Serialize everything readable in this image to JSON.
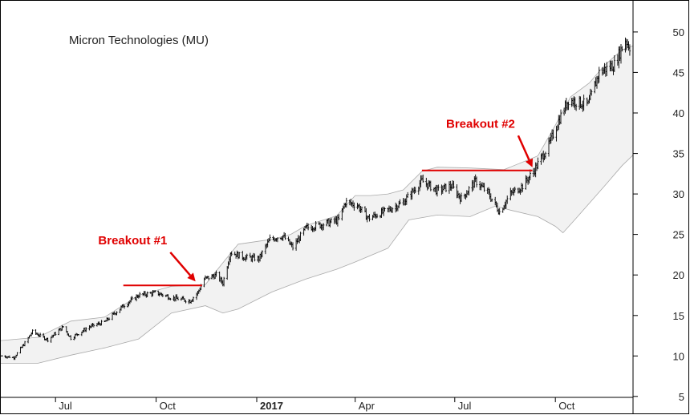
{
  "chart_data": {
    "type": "ohlc",
    "title": "Micron Technologies (MU)",
    "xlabel": "",
    "ylabel": "",
    "ylim": [
      5,
      52
    ],
    "y_ticks": [
      5,
      10,
      15,
      20,
      25,
      30,
      35,
      40,
      45,
      50
    ],
    "grid": false,
    "x_range": [
      "2016-05-12",
      "2017-12-11"
    ],
    "x_ticks": [
      {
        "label": "Jul",
        "date": "2016-07-01",
        "bold": false
      },
      {
        "label": "Oct",
        "date": "2016-10-01",
        "bold": false
      },
      {
        "label": "2017",
        "date": "2017-01-01",
        "bold": true
      },
      {
        "label": "Apr",
        "date": "2017-04-01",
        "bold": false
      },
      {
        "label": "Jul",
        "date": "2017-07-01",
        "bold": false
      },
      {
        "label": "Oct",
        "date": "2017-10-01",
        "bold": false
      }
    ],
    "price_anchors": [
      [
        "2016-05-13",
        10.0
      ],
      [
        "2016-05-24",
        9.8
      ],
      [
        "2016-06-03",
        11.6
      ],
      [
        "2016-06-10",
        13.0
      ],
      [
        "2016-06-24",
        12.0
      ],
      [
        "2016-07-08",
        13.6
      ],
      [
        "2016-07-15",
        12.2
      ],
      [
        "2016-08-01",
        13.6
      ],
      [
        "2016-08-15",
        14.2
      ],
      [
        "2016-09-01",
        16.2
      ],
      [
        "2016-09-15",
        17.5
      ],
      [
        "2016-10-01",
        17.8
      ],
      [
        "2016-10-15",
        17.2
      ],
      [
        "2016-11-01",
        16.8
      ],
      [
        "2016-11-08",
        17.8
      ],
      [
        "2016-11-14",
        19.5
      ],
      [
        "2016-11-25",
        20.0
      ],
      [
        "2016-12-01",
        19.0
      ],
      [
        "2016-12-08",
        22.8
      ],
      [
        "2016-12-20",
        22.2
      ],
      [
        "2017-01-03",
        22.0
      ],
      [
        "2017-01-13",
        24.4
      ],
      [
        "2017-01-25",
        24.8
      ],
      [
        "2017-02-03",
        23.4
      ],
      [
        "2017-02-15",
        25.8
      ],
      [
        "2017-03-01",
        26.2
      ],
      [
        "2017-03-17",
        26.8
      ],
      [
        "2017-03-23",
        29.0
      ],
      [
        "2017-04-03",
        28.6
      ],
      [
        "2017-04-13",
        27.0
      ],
      [
        "2017-05-01",
        28.0
      ],
      [
        "2017-05-15",
        29.0
      ],
      [
        "2017-06-01",
        31.6
      ],
      [
        "2017-06-15",
        30.4
      ],
      [
        "2017-06-28",
        31.0
      ],
      [
        "2017-07-07",
        29.4
      ],
      [
        "2017-07-20",
        31.6
      ],
      [
        "2017-07-31",
        30.2
      ],
      [
        "2017-08-11",
        27.8
      ],
      [
        "2017-08-21",
        30.0
      ],
      [
        "2017-09-01",
        31.0
      ],
      [
        "2017-09-11",
        32.8
      ],
      [
        "2017-09-25",
        36.0
      ],
      [
        "2017-10-05",
        39.4
      ],
      [
        "2017-10-13",
        41.6
      ],
      [
        "2017-10-31",
        41.0
      ],
      [
        "2017-11-10",
        45.0
      ],
      [
        "2017-11-24",
        46.0
      ],
      [
        "2017-12-04",
        49.0
      ],
      [
        "2017-12-08",
        48.2
      ]
    ],
    "band_upper": [
      [
        "2016-05-12",
        11.9
      ],
      [
        "2016-06-15",
        12.3
      ],
      [
        "2016-07-15",
        14.3
      ],
      [
        "2016-08-15",
        14.8
      ],
      [
        "2016-09-15",
        17.5
      ],
      [
        "2016-10-15",
        18.6
      ],
      [
        "2016-11-15",
        18.8
      ],
      [
        "2016-12-01",
        21.5
      ],
      [
        "2016-12-15",
        23.8
      ],
      [
        "2017-01-15",
        24.4
      ],
      [
        "2017-02-01",
        25.0
      ],
      [
        "2017-02-15",
        26.1
      ],
      [
        "2017-03-15",
        27.3
      ],
      [
        "2017-04-01",
        29.8
      ],
      [
        "2017-04-15",
        29.8
      ],
      [
        "2017-05-01",
        30.0
      ],
      [
        "2017-05-15",
        30.5
      ],
      [
        "2017-06-01",
        32.8
      ],
      [
        "2017-06-15",
        33.3
      ],
      [
        "2017-07-15",
        33.2
      ],
      [
        "2017-08-15",
        33.0
      ],
      [
        "2017-09-15",
        34.7
      ],
      [
        "2017-10-01",
        38.5
      ],
      [
        "2017-10-15",
        42.0
      ],
      [
        "2017-11-01",
        43.7
      ],
      [
        "2017-11-15",
        45.9
      ],
      [
        "2017-12-01",
        47.8
      ],
      [
        "2017-12-11",
        48.3
      ]
    ],
    "band_lower": [
      [
        "2016-05-12",
        9.1
      ],
      [
        "2016-06-15",
        9.1
      ],
      [
        "2016-07-15",
        10.1
      ],
      [
        "2016-08-15",
        11.0
      ],
      [
        "2016-09-15",
        12.1
      ],
      [
        "2016-10-15",
        15.3
      ],
      [
        "2016-11-15",
        16.2
      ],
      [
        "2016-12-01",
        15.3
      ],
      [
        "2016-12-15",
        15.8
      ],
      [
        "2017-01-15",
        17.9
      ],
      [
        "2017-02-15",
        19.5
      ],
      [
        "2017-03-15",
        20.7
      ],
      [
        "2017-04-01",
        21.6
      ],
      [
        "2017-05-01",
        23.3
      ],
      [
        "2017-05-20",
        26.8
      ],
      [
        "2017-06-15",
        27.4
      ],
      [
        "2017-07-15",
        27.2
      ],
      [
        "2017-08-07",
        28.5
      ],
      [
        "2017-08-21",
        28.0
      ],
      [
        "2017-09-15",
        27.2
      ],
      [
        "2017-10-01",
        26.0
      ],
      [
        "2017-10-08",
        25.2
      ],
      [
        "2017-10-20",
        27.0
      ],
      [
        "2017-11-15",
        31.0
      ],
      [
        "2017-12-01",
        33.5
      ],
      [
        "2017-12-11",
        34.8
      ]
    ],
    "annotations": [
      {
        "text": "Breakout #1",
        "line_start": "2016-09-01",
        "line_end": "2016-11-12",
        "level": 18.7,
        "arrow_from": [
          "2016-10-14",
          22.8
        ],
        "arrow_to": [
          "2016-11-06",
          19.2
        ]
      },
      {
        "text": "Breakout #2",
        "line_start": "2017-06-01",
        "line_end": "2017-09-10",
        "level": 32.9,
        "arrow_from": [
          "2017-08-28",
          37.2
        ],
        "arrow_to": [
          "2017-09-10",
          33.3
        ]
      }
    ],
    "colors": {
      "bars": "#000000",
      "band_fill": "#f2f2f2",
      "band_stroke": "#aaaaaa",
      "annotation": "#e00000",
      "frame": "#000000"
    }
  }
}
